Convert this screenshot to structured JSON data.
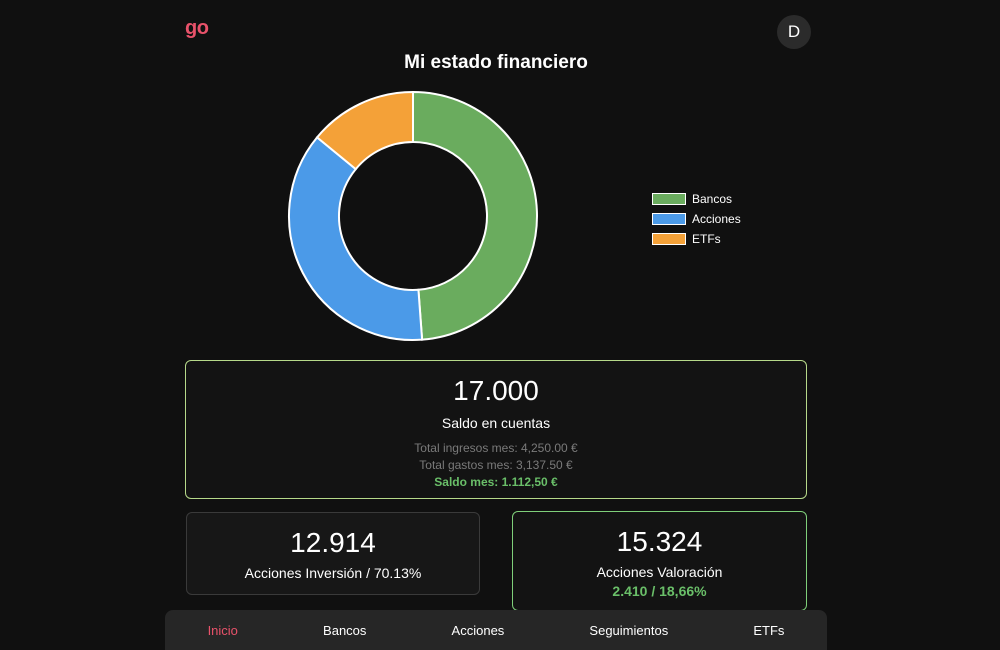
{
  "header": {
    "logo": "go",
    "avatar_initial": "D",
    "title": "Mi estado financiero"
  },
  "chart_data": {
    "type": "pie",
    "variant": "doughnut",
    "categories": [
      "Bancos",
      "Acciones",
      "ETFs"
    ],
    "values": [
      17000,
      12914,
      4900
    ],
    "colors": [
      "#6aac5e",
      "#4b9ae8",
      "#f4a138"
    ],
    "legend": "right"
  },
  "balance_card": {
    "value": "17.000",
    "label": "Saldo en cuentas",
    "income": "Total ingresos mes: 4,250.00 €",
    "expenses": "Total gastos mes: 3,137.50 €",
    "monthly_balance": "Saldo mes: 1.112,50 €"
  },
  "investment_card": {
    "value": "12.914",
    "label": "Acciones Inversión / 70.13%"
  },
  "valuation_card": {
    "value": "15.324",
    "label": "Acciones Valoración",
    "gain": "2.410 / 18,66%"
  },
  "nav": {
    "items": [
      {
        "label": "Inicio"
      },
      {
        "label": "Bancos"
      },
      {
        "label": "Acciones"
      },
      {
        "label": "Seguimientos"
      },
      {
        "label": "ETFs"
      }
    ]
  },
  "colors": {
    "accent": "#e8526a",
    "positive": "#6abf69",
    "background": "#101010"
  }
}
